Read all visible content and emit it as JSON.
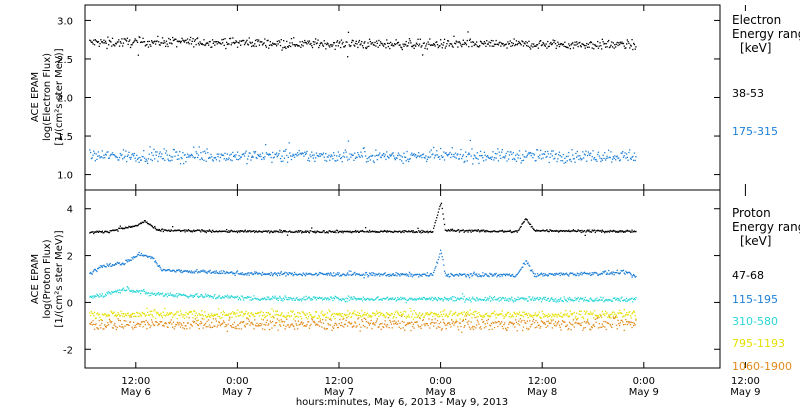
{
  "chart_data": [
    {
      "type": "scatter",
      "ylabel_lines": [
        "ACE EPAM",
        "log(Electron Flux)",
        "[1/(cm²s ster MeV)]"
      ],
      "ylim": [
        0.8,
        3.2
      ],
      "yticks": [
        1.0,
        1.5,
        2.0,
        2.5,
        3.0
      ],
      "ytick_labels": [
        "1.0",
        "1.5",
        "2.0",
        "2.5",
        "3.0"
      ],
      "legend_title": [
        "Electron",
        "Energy ranges",
        "[keV]"
      ],
      "series": [
        {
          "name": "38-53",
          "color": "#000000",
          "base": 2.72,
          "noise": 0.06,
          "profile": [
            [
              0,
              2.72
            ],
            [
              24,
              2.73
            ],
            [
              60,
              2.7
            ],
            [
              96,
              2.7
            ],
            [
              130,
              2.69
            ]
          ]
        },
        {
          "name": "175-315",
          "color": "#1e7fd6",
          "base": 1.25,
          "noise": 0.08,
          "profile": [
            [
              0,
              1.25
            ],
            [
              130,
              1.25
            ]
          ]
        }
      ]
    },
    {
      "type": "scatter",
      "ylabel_lines": [
        "ACE EPAM",
        "log(Proton Flux)",
        "[1/(cm²s ster MeV)]"
      ],
      "ylim": [
        -2.8,
        4.8
      ],
      "yticks": [
        -2,
        0,
        2,
        4
      ],
      "ytick_labels": [
        "-2",
        "0",
        "2",
        "4"
      ],
      "legend_title": [
        "Proton",
        "Energy ranges",
        "[keV]"
      ],
      "series": [
        {
          "name": "47-68",
          "color": "#000000",
          "noise": 0.05,
          "profile": [
            [
              0,
              3.0
            ],
            [
              5,
              3.05
            ],
            [
              12,
              3.3
            ],
            [
              14,
              3.5
            ],
            [
              17,
              3.1
            ],
            [
              40,
              3.05
            ],
            [
              82,
              3.05
            ],
            [
              84,
              4.3
            ],
            [
              85,
              3.1
            ],
            [
              102,
              3.05
            ],
            [
              104,
              3.6
            ],
            [
              106,
              3.1
            ],
            [
              130,
              3.05
            ]
          ]
        },
        {
          "name": "115-195",
          "color": "#1e7fd6",
          "noise": 0.08,
          "profile": [
            [
              0,
              1.1
            ],
            [
              4,
              1.6
            ],
            [
              9,
              1.7
            ],
            [
              13,
              2.1
            ],
            [
              16,
              1.9
            ],
            [
              18,
              1.4
            ],
            [
              40,
              1.25
            ],
            [
              82,
              1.2
            ],
            [
              84,
              2.2
            ],
            [
              85,
              1.2
            ],
            [
              102,
              1.2
            ],
            [
              104,
              1.8
            ],
            [
              106,
              1.2
            ],
            [
              128,
              1.3
            ],
            [
              130,
              1.1
            ]
          ]
        },
        {
          "name": "310-580",
          "color": "#2dd6d6",
          "noise": 0.1,
          "profile": [
            [
              0,
              0.2
            ],
            [
              10,
              0.6
            ],
            [
              15,
              0.4
            ],
            [
              40,
              0.2
            ],
            [
              130,
              0.15
            ]
          ]
        },
        {
          "name": "795-1193",
          "color": "#e4e000",
          "noise": 0.18,
          "profile": [
            [
              0,
              -0.5
            ],
            [
              130,
              -0.5
            ]
          ]
        },
        {
          "name": "1060-1900",
          "color": "#e08a1a",
          "noise": 0.25,
          "profile": [
            [
              0,
              -0.9
            ],
            [
              130,
              -0.9
            ]
          ]
        }
      ]
    }
  ],
  "x_axis": {
    "xlim": [
      0,
      150
    ],
    "data_end": 130,
    "ticks": [
      {
        "t": 12,
        "line1": "12:00",
        "line2": "May 6"
      },
      {
        "t": 36,
        "line1": "0:00",
        "line2": "May 7"
      },
      {
        "t": 60,
        "line1": "12:00",
        "line2": "May 7"
      },
      {
        "t": 84,
        "line1": "0:00",
        "line2": "May 8"
      },
      {
        "t": 108,
        "line1": "12:00",
        "line2": "May 8"
      },
      {
        "t": 132,
        "line1": "0:00",
        "line2": "May 9"
      },
      {
        "t": 156,
        "line1": "12:00",
        "line2": "May 9"
      }
    ],
    "xlabel": "hours:minutes, May  6, 2013 - May  9, 2013"
  }
}
